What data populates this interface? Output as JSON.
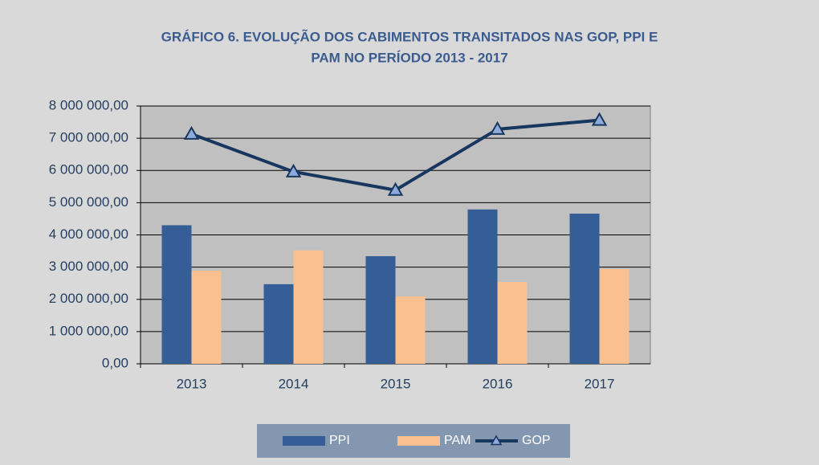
{
  "chart_data": {
    "type": "bar-line",
    "title": [
      "GRÁFICO 6. EVOLUÇÃO DOS CABIMENTOS TRANSITADOS NAS GOP, PPI E",
      "PAM NO PERÍODO 2013 - 2017"
    ],
    "categories": [
      "2013",
      "2014",
      "2015",
      "2016",
      "2017"
    ],
    "series": [
      {
        "name": "PPI",
        "type": "bar",
        "color": "#355e96",
        "values": [
          4300000,
          2470000,
          3340000,
          4790000,
          4660000
        ]
      },
      {
        "name": "PAM",
        "type": "bar",
        "color": "#fac090",
        "values": [
          2890000,
          3520000,
          2090000,
          2540000,
          2940000
        ]
      },
      {
        "name": "GOP",
        "type": "line",
        "color": "#17375e",
        "values": [
          7130000,
          5960000,
          5390000,
          7280000,
          7560000
        ]
      }
    ],
    "ylim": [
      0,
      8000000
    ],
    "yticks": [
      {
        "value": 0,
        "label": "0,00"
      },
      {
        "value": 1000000,
        "label": "1 000 000,00"
      },
      {
        "value": 2000000,
        "label": "2 000 000,00"
      },
      {
        "value": 3000000,
        "label": "3 000 000,00"
      },
      {
        "value": 4000000,
        "label": "4 000 000,00"
      },
      {
        "value": 5000000,
        "label": "5 000 000,00"
      },
      {
        "value": 6000000,
        "label": "6 000 000,00"
      },
      {
        "value": 7000000,
        "label": "7 000 000,00"
      },
      {
        "value": 8000000,
        "label": "8 000 000,00"
      }
    ],
    "grid": true,
    "legend": "bottom"
  }
}
